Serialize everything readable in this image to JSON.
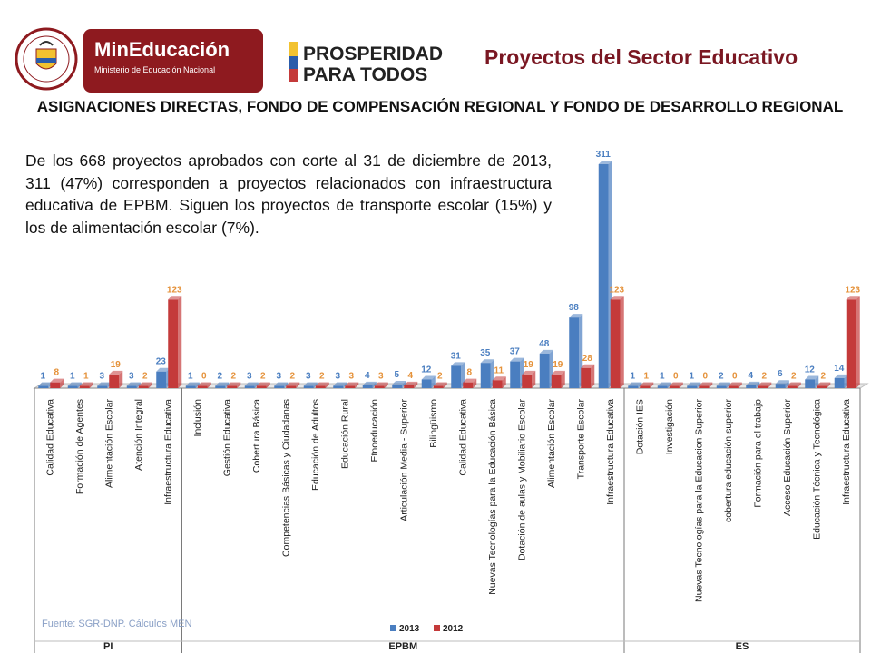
{
  "header": {
    "ministry_name": "MinEducación",
    "ministry_subtitle": "Ministerio de Educación Nacional",
    "seal_text": "REPÚBLICA DE COLOMBIA",
    "prosperity_line1": "PROSPERIDAD",
    "prosperity_line2": "PARA TODOS",
    "page_title": "Proyectos del Sector Educativo",
    "subtitle": "ASIGNACIONES DIRECTAS, FONDO DE COMPENSACIÓN REGIONAL Y FONDO DE DESARROLLO REGIONAL"
  },
  "description": "De los 668 proyectos aprobados con corte al 31 de diciembre de 2013, 311 (47%) corresponden a proyectos relacionados con infraestructura educativa de EPBM. Siguen los proyectos  de transporte escolar (15%) y los de alimentación escolar (7%).",
  "source": "Fuente: SGR-DNP. Cálculos MEN",
  "colors": {
    "s2013": "#4a7ec0",
    "s2012": "#c43a3a",
    "label2013": "#4a7ec0",
    "label2012": "#e5923a"
  },
  "chart_data": {
    "type": "bar",
    "legend_position": "bottom",
    "series": [
      {
        "name": "2013"
      },
      {
        "name": "2012"
      }
    ],
    "groups": [
      {
        "name": "PI",
        "categories": [
          {
            "label": "Calidad Educativa",
            "v2013": 1,
            "v2012": 8
          },
          {
            "label": "Formación de Agentes",
            "v2013": 1,
            "v2012": 1
          },
          {
            "label": "Alimentación Escolar",
            "v2013": 3,
            "v2012": 19
          },
          {
            "label": "Atención Integral",
            "v2013": 3,
            "v2012": 2
          },
          {
            "label": "Infraestructura Educativa",
            "v2013": 23,
            "v2012": 123
          }
        ]
      },
      {
        "name": "EPBM",
        "categories": [
          {
            "label": "Inclusión",
            "v2013": 1,
            "v2012": 0
          },
          {
            "label": "Gestión Educativa",
            "v2013": 2,
            "v2012": 2
          },
          {
            "label": "Cobertura Básica",
            "v2013": 3,
            "v2012": 2
          },
          {
            "label": "Competencias Básicas y  Ciudadanas",
            "v2013": 3,
            "v2012": 2
          },
          {
            "label": "Educación de Adultos",
            "v2013": 3,
            "v2012": 2
          },
          {
            "label": "Educación Rural",
            "v2013": 3,
            "v2012": 3
          },
          {
            "label": "Etnoeducación",
            "v2013": 4,
            "v2012": 3
          },
          {
            "label": "Articulación Media - Superior",
            "v2013": 5,
            "v2012": 4
          },
          {
            "label": "Bilingüismo",
            "v2013": 12,
            "v2012": 2
          },
          {
            "label": "Calidad Educativa",
            "v2013": 31,
            "v2012": 8
          },
          {
            "label": "Nuevas Tecnologías para la Educación Básica",
            "v2013": 35,
            "v2012": 11
          },
          {
            "label": "Dotación de aulas y Mobiliario Escolar",
            "v2013": 37,
            "v2012": 19
          },
          {
            "label": "Alimentación Escolar",
            "v2013": 48,
            "v2012": 19
          },
          {
            "label": "Transporte Escolar",
            "v2013": 98,
            "v2012": 28
          },
          {
            "label": "Infraestructura Educativa",
            "v2013": 311,
            "v2012": 123
          }
        ]
      },
      {
        "name": "ES",
        "categories": [
          {
            "label": "Dotación IES",
            "v2013": 1,
            "v2012": 1
          },
          {
            "label": "Investigación",
            "v2013": 1,
            "v2012": 0
          },
          {
            "label": "Nuevas Tecnologías para la Educacion Superior",
            "v2013": 1,
            "v2012": 0
          },
          {
            "label": "cobertura educación superior",
            "v2013": 2,
            "v2012": 0
          },
          {
            "label": "Formación para el trabajo",
            "v2013": 4,
            "v2012": 2
          },
          {
            "label": "Acceso Educación Superior",
            "v2013": 6,
            "v2012": 2
          },
          {
            "label": "Educación Técnica y Tecnológica",
            "v2013": 12,
            "v2012": 2
          },
          {
            "label": "Infraestructura Educativa",
            "v2013": 14,
            "v2012": 123
          }
        ]
      }
    ]
  }
}
